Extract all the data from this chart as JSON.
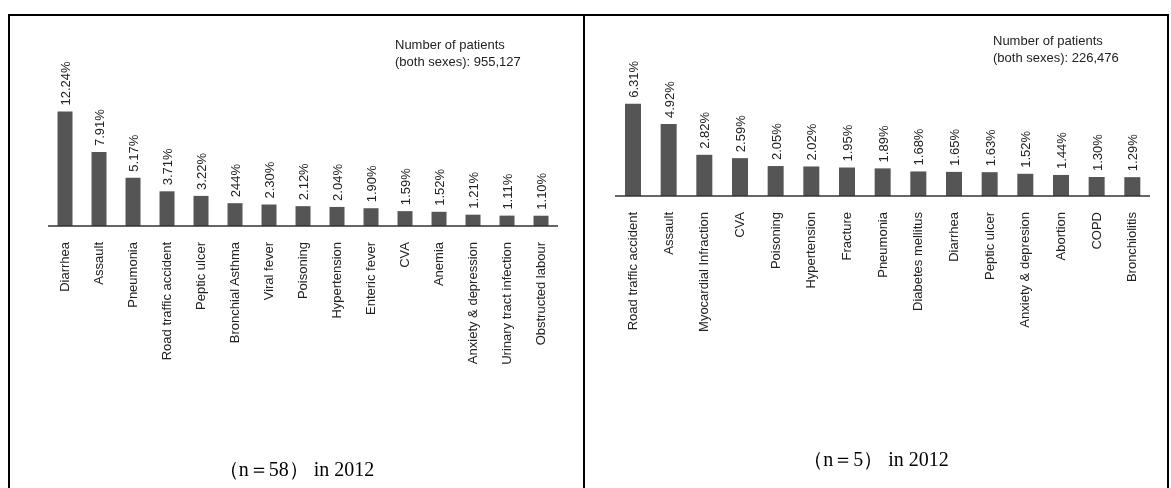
{
  "chart_data": [
    {
      "type": "bar",
      "categories": [
        "Diarrhea",
        "Assault",
        "Pneumonia",
        "Road traffic accident",
        "Peptic ulcer",
        "Bronchial Asthma",
        "Viral fever",
        "Poisoning",
        "Hypertension",
        "Enteric fever",
        "CVA",
        "Anemia",
        "Anxiety & depression",
        "Urinary tract infection",
        "Obstructed labour"
      ],
      "values": [
        12.24,
        7.91,
        5.17,
        3.71,
        3.22,
        2.44,
        2.3,
        2.12,
        2.04,
        1.9,
        1.59,
        1.52,
        1.21,
        1.11,
        1.1
      ],
      "value_labels": [
        "12.24%",
        "7.91%",
        "5.17%",
        "3.71%",
        "3.22%",
        "244%",
        "2.30%",
        "2.12%",
        "2.04%",
        "1.90%",
        "1.59%",
        "1.52%",
        "1.21%",
        "1.11%",
        "1.10%"
      ],
      "color": "#555555",
      "annotations": [
        "Number of patients\n(both sexes): 955,127",
        "（n＝58） in 2012"
      ]
    },
    {
      "type": "bar",
      "categories": [
        "Road traffic accident",
        "Assault",
        "Myocardial Infraction",
        "CVA",
        "Poisoning",
        "Hypertension",
        "Fracture",
        "Pneumonia",
        "Diabetes mellitus",
        "Diarrhea",
        "Peptic ulcer",
        "Anxiety & depresion",
        "Abortion",
        "COPD",
        "Bronchiolitis"
      ],
      "values": [
        6.31,
        4.92,
        2.82,
        2.59,
        2.05,
        2.02,
        1.95,
        1.89,
        1.68,
        1.65,
        1.63,
        1.52,
        1.44,
        1.3,
        1.29
      ],
      "value_labels": [
        "6.31%",
        "4.92%",
        "2.82%",
        "2.59%",
        "2.05%",
        "2.02%",
        "1.95%",
        "1.89%",
        "1.68%",
        "1.65%",
        "1.63%",
        "1.52%",
        "1.44%",
        "1.30%",
        "1.29%"
      ],
      "color": "#555555",
      "annotations": [
        "Number of patients\n(both sexes): 226,476",
        "（n＝5） in 2012"
      ]
    }
  ]
}
